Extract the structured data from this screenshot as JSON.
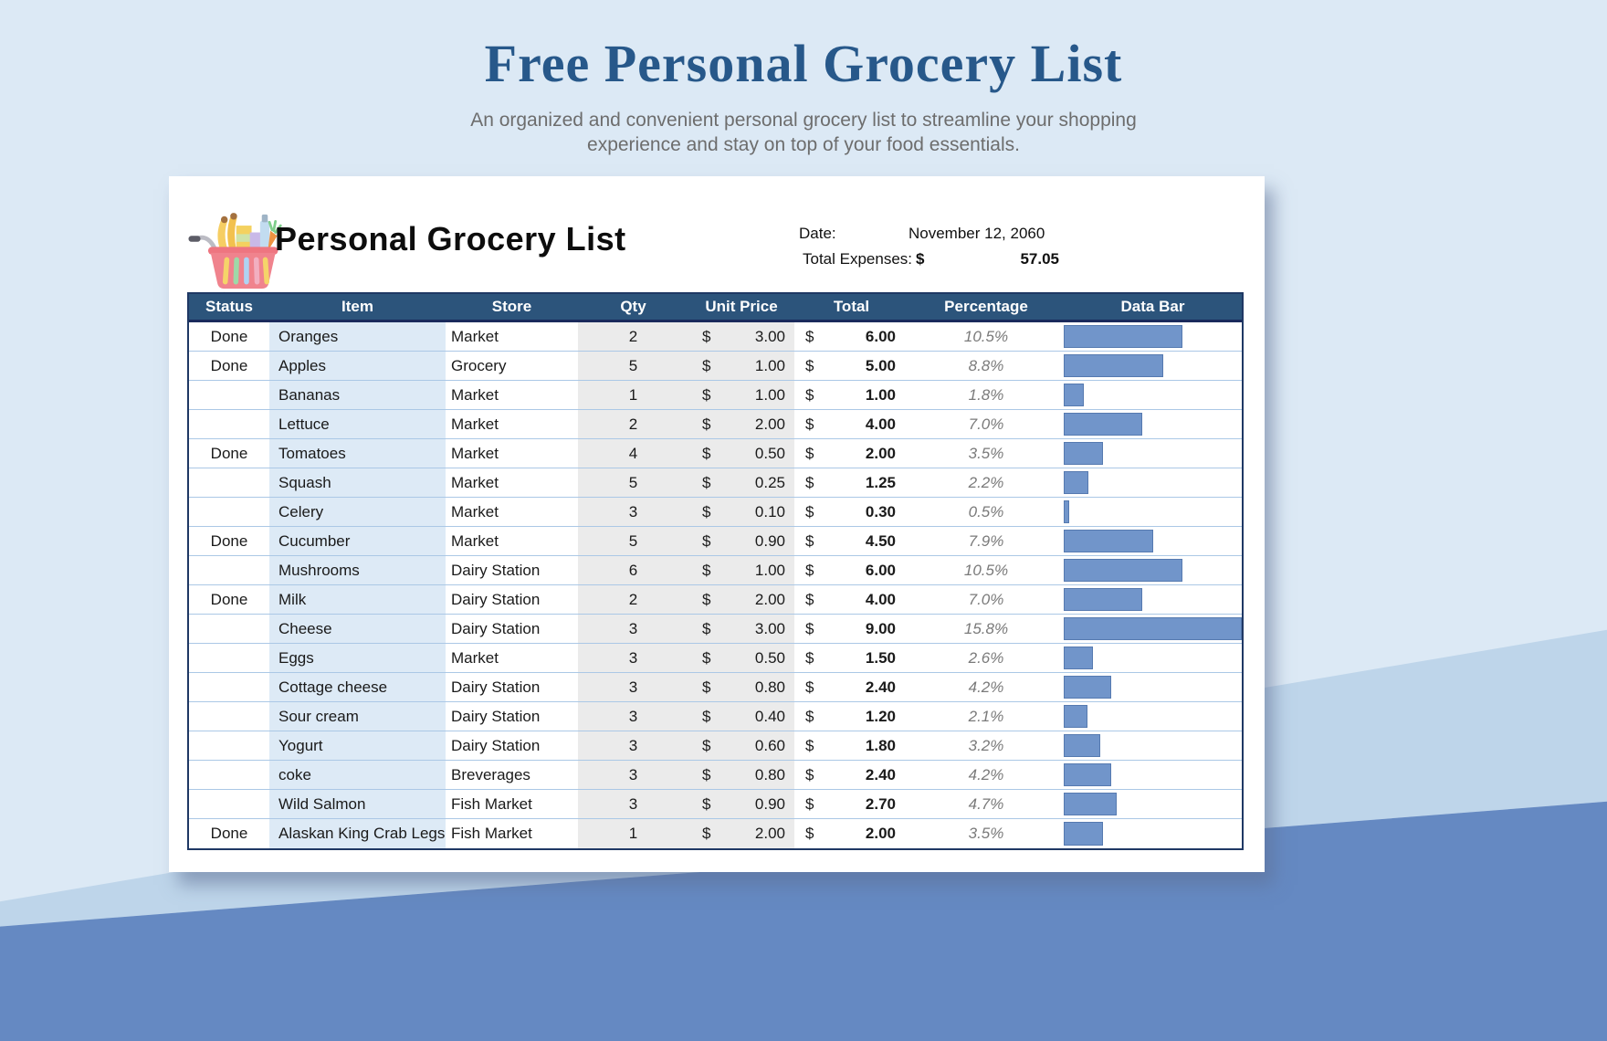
{
  "page": {
    "title": "Free Personal Grocery List",
    "subtitle": "An organized and convenient personal grocery list to streamline your shopping experience and stay on top of your food essentials."
  },
  "card": {
    "title": "Personal Grocery List",
    "date_label": "Date:",
    "date_value": "November 12, 2060",
    "expenses_label": "Total Expenses:",
    "currency_symbol": "$",
    "expenses_value": "57.05"
  },
  "icons": {
    "cart": "grocery-cart-icon"
  },
  "colors": {
    "page_bg": "#DCE9F5",
    "band_bg": "#BED5EA",
    "bottom_bg": "#6589C2",
    "title_blue": "#27588A",
    "header_navy": "#2C547B",
    "table_border_navy": "#1F3864",
    "item_col_bg": "#DDEAF6",
    "gray_col_bg": "#EBEBEB",
    "row_separator": "#ABC8E6",
    "data_bar_fill": "#7195CA",
    "data_bar_border": "#567AB0",
    "percentage_text": "#7a7a7a"
  },
  "table": {
    "columns": [
      "Status",
      "Item",
      "Store",
      "Qty",
      "Unit Price",
      "Total",
      "Percentage",
      "Data Bar"
    ],
    "currency_symbol": "$",
    "max_percentage": 15.8,
    "rows": [
      {
        "status": "Done",
        "item": "Oranges",
        "store": "Market",
        "qty": "2",
        "unit_price": "3.00",
        "total": "6.00",
        "percentage": "10.5%"
      },
      {
        "status": "Done",
        "item": "Apples",
        "store": "Grocery",
        "qty": "5",
        "unit_price": "1.00",
        "total": "5.00",
        "percentage": "8.8%"
      },
      {
        "status": "",
        "item": "Bananas",
        "store": "Market",
        "qty": "1",
        "unit_price": "1.00",
        "total": "1.00",
        "percentage": "1.8%"
      },
      {
        "status": "",
        "item": "Lettuce",
        "store": "Market",
        "qty": "2",
        "unit_price": "2.00",
        "total": "4.00",
        "percentage": "7.0%"
      },
      {
        "status": "Done",
        "item": "Tomatoes",
        "store": "Market",
        "qty": "4",
        "unit_price": "0.50",
        "total": "2.00",
        "percentage": "3.5%"
      },
      {
        "status": "",
        "item": "Squash",
        "store": "Market",
        "qty": "5",
        "unit_price": "0.25",
        "total": "1.25",
        "percentage": "2.2%"
      },
      {
        "status": "",
        "item": "Celery",
        "store": "Market",
        "qty": "3",
        "unit_price": "0.10",
        "total": "0.30",
        "percentage": "0.5%"
      },
      {
        "status": "Done",
        "item": "Cucumber",
        "store": "Market",
        "qty": "5",
        "unit_price": "0.90",
        "total": "4.50",
        "percentage": "7.9%"
      },
      {
        "status": "",
        "item": "Mushrooms",
        "store": "Dairy Station",
        "qty": "6",
        "unit_price": "1.00",
        "total": "6.00",
        "percentage": "10.5%"
      },
      {
        "status": "Done",
        "item": "Milk",
        "store": "Dairy Station",
        "qty": "2",
        "unit_price": "2.00",
        "total": "4.00",
        "percentage": "7.0%"
      },
      {
        "status": "",
        "item": "Cheese",
        "store": "Dairy Station",
        "qty": "3",
        "unit_price": "3.00",
        "total": "9.00",
        "percentage": "15.8%"
      },
      {
        "status": "",
        "item": "Eggs",
        "store": "Market",
        "qty": "3",
        "unit_price": "0.50",
        "total": "1.50",
        "percentage": "2.6%"
      },
      {
        "status": "",
        "item": "Cottage cheese",
        "store": "Dairy Station",
        "qty": "3",
        "unit_price": "0.80",
        "total": "2.40",
        "percentage": "4.2%"
      },
      {
        "status": "",
        "item": "Sour cream",
        "store": "Dairy Station",
        "qty": "3",
        "unit_price": "0.40",
        "total": "1.20",
        "percentage": "2.1%"
      },
      {
        "status": "",
        "item": "Yogurt",
        "store": "Dairy Station",
        "qty": "3",
        "unit_price": "0.60",
        "total": "1.80",
        "percentage": "3.2%"
      },
      {
        "status": "",
        "item": "coke",
        "store": "Breverages",
        "qty": "3",
        "unit_price": "0.80",
        "total": "2.40",
        "percentage": "4.2%"
      },
      {
        "status": "",
        "item": "Wild Salmon",
        "store": "Fish Market",
        "qty": "3",
        "unit_price": "0.90",
        "total": "2.70",
        "percentage": "4.7%"
      },
      {
        "status": "Done",
        "item": "Alaskan King Crab Legs",
        "store": "Fish Market",
        "qty": "1",
        "unit_price": "2.00",
        "total": "2.00",
        "percentage": "3.5%"
      }
    ]
  }
}
